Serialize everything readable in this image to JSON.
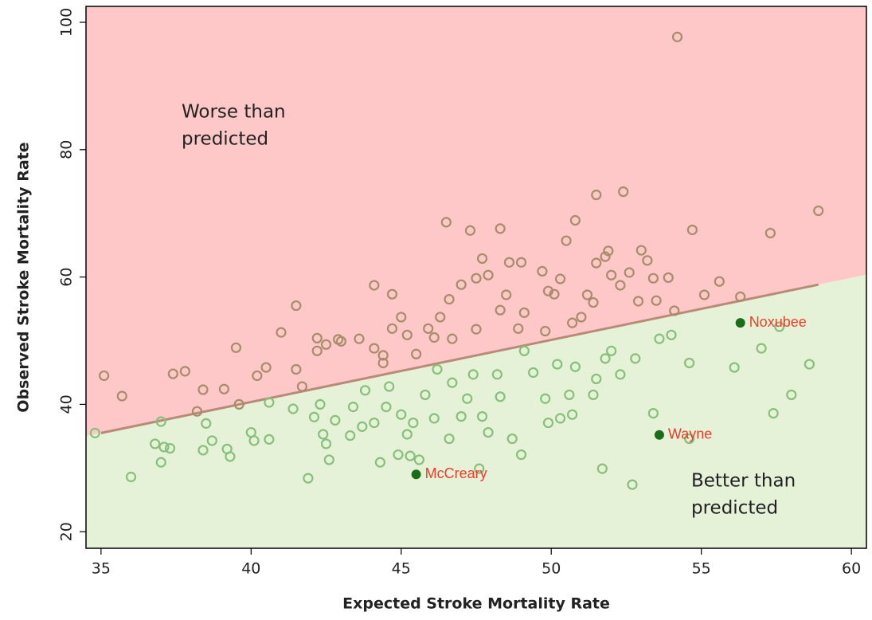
{
  "chart_data": {
    "type": "scatter",
    "xlabel": "Expected Stroke Mortality Rate",
    "ylabel": "Observed Stroke Mortality Rate",
    "xlim": [
      34.5,
      60.5
    ],
    "ylim": [
      17.4,
      102.5
    ],
    "xticks": [
      35,
      40,
      45,
      50,
      55,
      60
    ],
    "yticks": [
      20,
      40,
      60,
      80,
      100
    ],
    "regions": [
      {
        "side": "above",
        "color": "#ffc8c8",
        "label": [
          "Worse than",
          "predicted"
        ]
      },
      {
        "side": "below",
        "color": "#e6f2d8",
        "label": [
          "Better than",
          "predicted"
        ]
      }
    ],
    "trend_line": {
      "color": "#b88a78",
      "x": [
        35,
        58.9
      ],
      "values": [
        35.5,
        58.8
      ]
    },
    "series": [
      {
        "color": "#a88c6c",
        "marker": "open",
        "x": [
          35.1,
          35.7,
          37.4,
          37.8,
          38.2,
          38.4,
          39.1,
          39.5,
          39.6,
          40.2,
          40.5,
          41.0,
          41.5,
          41.5,
          41.7,
          42.2,
          42.2,
          42.5,
          42.9,
          43.0,
          43.6,
          44.1,
          44.1,
          44.4,
          44.7,
          44.7,
          44.4,
          45.0,
          45.2,
          45.5,
          45.9,
          46.1,
          46.3,
          46.5,
          46.6,
          46.7,
          47.0,
          47.3,
          47.5,
          47.5,
          47.7,
          47.9,
          48.3,
          48.3,
          48.5,
          48.6,
          48.9,
          49.0,
          49.1,
          49.7,
          49.8,
          49.9,
          50.1,
          50.3,
          50.5,
          50.7,
          50.8,
          51.0,
          51.2,
          51.4,
          51.5,
          51.5,
          51.8,
          51.9,
          52.0,
          52.3,
          52.4,
          52.6,
          52.9,
          53.0,
          53.2,
          53.4,
          53.5,
          53.9,
          54.1,
          54.2,
          54.7,
          55.1,
          55.6,
          56.3,
          57.3,
          58.9
        ],
        "values": [
          44.5,
          41.3,
          44.8,
          45.2,
          38.9,
          42.3,
          42.4,
          48.9,
          40.0,
          44.5,
          45.8,
          51.3,
          45.5,
          55.5,
          42.8,
          50.4,
          48.4,
          49.4,
          50.2,
          49.9,
          50.3,
          48.8,
          58.7,
          47.7,
          57.3,
          51.9,
          46.5,
          53.7,
          50.9,
          47.9,
          51.9,
          50.5,
          53.7,
          68.6,
          56.5,
          50.3,
          58.8,
          67.3,
          51.8,
          59.8,
          62.9,
          60.3,
          67.6,
          54.8,
          57.2,
          62.3,
          51.9,
          62.3,
          54.4,
          60.9,
          51.5,
          57.8,
          57.3,
          59.7,
          65.7,
          52.8,
          68.9,
          53.7,
          57.2,
          56.0,
          72.9,
          62.2,
          63.2,
          64.1,
          60.3,
          58.7,
          73.4,
          60.7,
          56.2,
          64.2,
          62.6,
          59.8,
          56.3,
          59.9,
          54.7,
          97.7,
          67.4,
          57.2,
          59.3,
          56.9,
          66.9,
          70.4
        ]
      },
      {
        "color": "#86c07a",
        "marker": "open",
        "x": [
          34.8,
          36.0,
          36.8,
          37.0,
          37.0,
          37.1,
          37.3,
          38.4,
          38.5,
          38.7,
          39.2,
          39.3,
          40.0,
          40.1,
          40.6,
          40.6,
          41.4,
          41.9,
          42.1,
          42.3,
          42.4,
          42.5,
          42.6,
          42.8,
          43.3,
          43.4,
          43.7,
          43.8,
          44.1,
          44.3,
          44.5,
          44.6,
          44.9,
          45.0,
          45.2,
          45.3,
          45.4,
          45.6,
          45.8,
          46.1,
          46.2,
          46.6,
          46.7,
          47.0,
          47.2,
          47.4,
          47.6,
          47.7,
          47.9,
          48.2,
          48.3,
          48.7,
          49.0,
          49.1,
          49.4,
          49.8,
          49.9,
          50.2,
          50.3,
          50.6,
          50.7,
          50.8,
          51.4,
          51.5,
          51.7,
          51.8,
          52.0,
          52.3,
          52.7,
          52.8,
          53.4,
          53.6,
          54.0,
          54.6,
          54.6,
          56.1,
          57.0,
          57.4,
          57.6,
          58.0,
          58.6
        ],
        "values": [
          35.5,
          28.6,
          33.8,
          37.3,
          30.9,
          33.3,
          33.1,
          32.8,
          37.0,
          34.3,
          33.0,
          31.8,
          35.6,
          34.3,
          34.5,
          40.3,
          39.3,
          28.4,
          38.0,
          40.0,
          35.3,
          33.8,
          31.3,
          37.5,
          35.1,
          39.6,
          36.5,
          42.2,
          37.1,
          30.9,
          39.6,
          42.8,
          32.1,
          38.4,
          35.3,
          31.9,
          37.1,
          31.3,
          41.5,
          37.8,
          45.5,
          34.6,
          43.4,
          38.1,
          40.9,
          44.7,
          29.9,
          38.1,
          35.6,
          44.7,
          41.2,
          34.6,
          32.1,
          48.4,
          45.0,
          40.9,
          37.1,
          46.3,
          37.8,
          41.5,
          38.4,
          45.9,
          41.5,
          44.0,
          29.9,
          47.2,
          48.4,
          44.7,
          27.4,
          47.2,
          38.6,
          50.3,
          50.9,
          34.6,
          46.5,
          45.8,
          48.8,
          38.6,
          52.2,
          41.5,
          46.3
        ]
      },
      {
        "color": "#1a6e1a",
        "marker": "filled",
        "label_color": "#e8402a",
        "x": [
          45.5,
          53.6,
          56.3
        ],
        "values": [
          29.0,
          35.2,
          52.8
        ],
        "point_labels": [
          "McCreary",
          "Wayne",
          "Noxubee"
        ]
      }
    ]
  }
}
